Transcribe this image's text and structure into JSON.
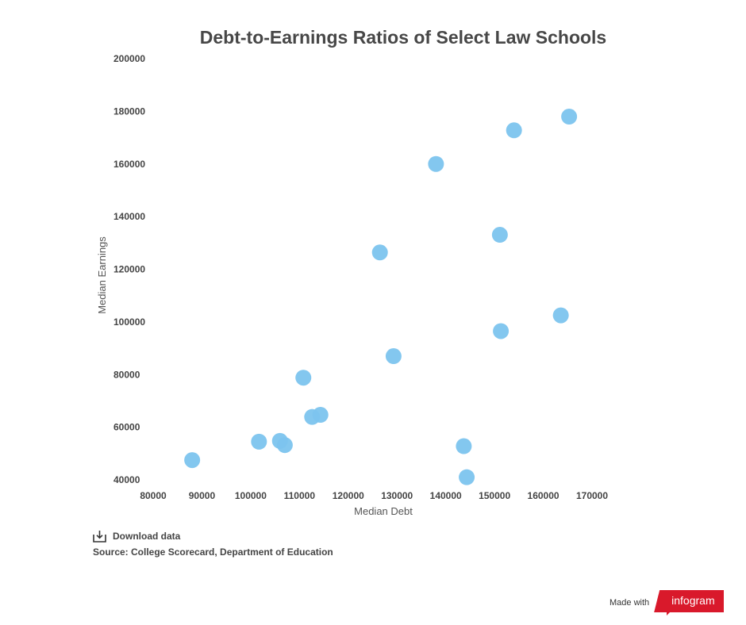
{
  "chart_data": {
    "type": "scatter",
    "title": "Debt-to-Earnings Ratios of Select Law Schools",
    "xlabel": "Median Debt",
    "ylabel": "Median Earnings",
    "xlim": [
      80000,
      170000
    ],
    "ylim": [
      40000,
      200000
    ],
    "xticks": [
      "80000",
      "90000",
      "100000",
      "110000",
      "120000",
      "130000",
      "140000",
      "150000",
      "160000",
      "170000"
    ],
    "yticks": [
      "40000",
      "60000",
      "80000",
      "100000",
      "120000",
      "140000",
      "160000",
      "180000",
      "200000"
    ],
    "marker_color": "#7cc4ee",
    "grid": false,
    "points": [
      {
        "x": 88000,
        "y": 47500
      },
      {
        "x": 101700,
        "y": 54500
      },
      {
        "x": 106000,
        "y": 54800
      },
      {
        "x": 107000,
        "y": 53200
      },
      {
        "x": 110800,
        "y": 78800
      },
      {
        "x": 112600,
        "y": 63900
      },
      {
        "x": 114300,
        "y": 64700
      },
      {
        "x": 126500,
        "y": 126400
      },
      {
        "x": 129300,
        "y": 87000
      },
      {
        "x": 138000,
        "y": 160000
      },
      {
        "x": 143700,
        "y": 52800
      },
      {
        "x": 144300,
        "y": 41000
      },
      {
        "x": 151100,
        "y": 133100
      },
      {
        "x": 151300,
        "y": 96500
      },
      {
        "x": 154000,
        "y": 172800
      },
      {
        "x": 163600,
        "y": 102500
      },
      {
        "x": 165300,
        "y": 178000
      }
    ]
  },
  "footer": {
    "download_label": "Download data",
    "source_text": "Source: College Scorecard, Department of Education"
  },
  "badge": {
    "made_with": "Made with",
    "brand": "infogram",
    "brand_color": "#d9192b"
  }
}
